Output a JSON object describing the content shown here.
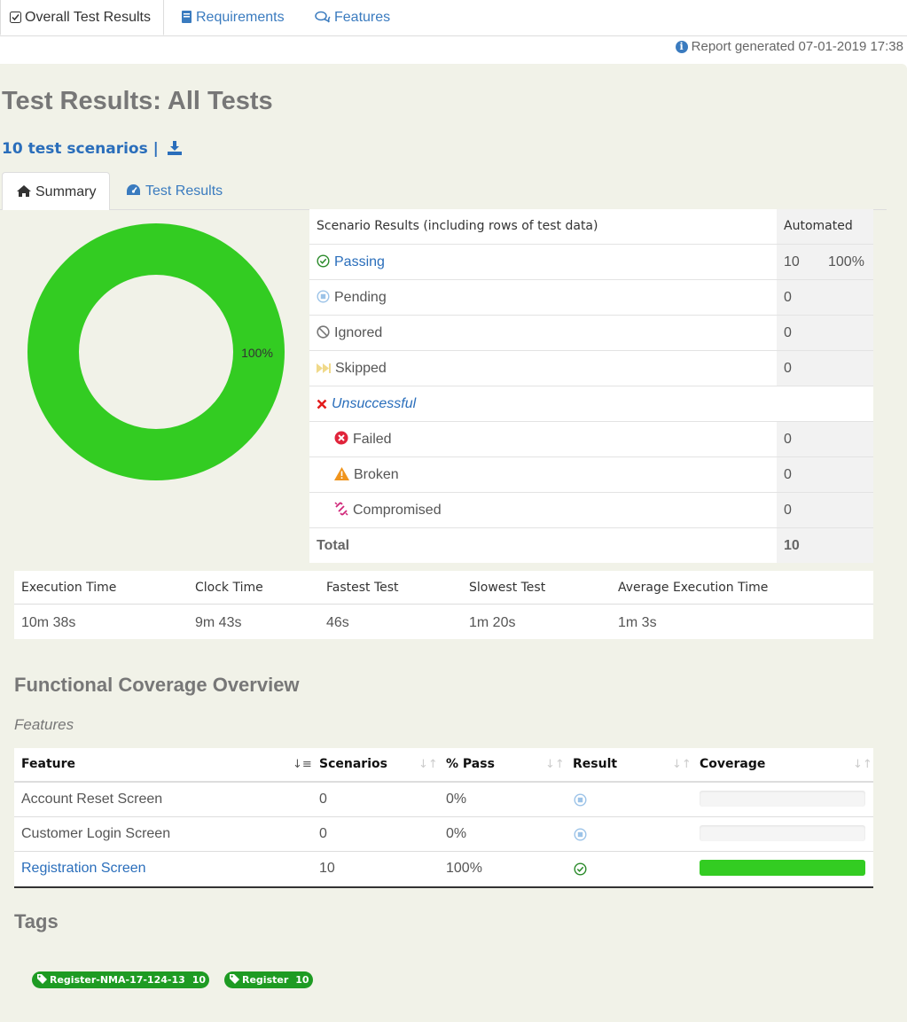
{
  "top_tabs": [
    {
      "label": "Overall Test Results",
      "icon": "checkbox-icon"
    },
    {
      "label": "Requirements",
      "icon": "book-icon"
    },
    {
      "label": "Features",
      "icon": "comments-icon"
    }
  ],
  "report_generated": "Report generated 07-01-2019 17:38",
  "page_title": "Test Results: All Tests",
  "scenarios_link": "10 test scenarios",
  "scenarios_sep": "|",
  "sub_tabs": [
    {
      "label": "Summary",
      "icon": "home-icon"
    },
    {
      "label": "Test Results",
      "icon": "dashboard-icon"
    }
  ],
  "donut": {
    "label": "100%",
    "pass_fraction": 1.0,
    "color": "#33cc22"
  },
  "results": {
    "header": "Scenario Results (including rows of test data)",
    "header_auto": "Automated",
    "rows": [
      {
        "label": "Passing",
        "count": "10",
        "pct": "100%"
      },
      {
        "label": "Pending",
        "count": "0",
        "pct": ""
      },
      {
        "label": "Ignored",
        "count": "0",
        "pct": ""
      },
      {
        "label": "Skipped",
        "count": "0",
        "pct": ""
      },
      {
        "label": "Unsuccessful",
        "count": "",
        "pct": ""
      },
      {
        "label": "Failed",
        "count": "0",
        "pct": ""
      },
      {
        "label": "Broken",
        "count": "0",
        "pct": ""
      },
      {
        "label": "Compromised",
        "count": "0",
        "pct": ""
      }
    ],
    "total_label": "Total",
    "total_count": "10"
  },
  "timing": {
    "headers": [
      "Execution Time",
      "Clock Time",
      "Fastest Test",
      "Slowest Test",
      "Average Execution Time"
    ],
    "values": [
      "10m 38s",
      "9m 43s",
      "46s",
      "1m 20s",
      "1m 3s"
    ]
  },
  "coverage": {
    "title": "Functional Coverage Overview",
    "subtitle": "Features",
    "headers": [
      "Feature",
      "Scenarios",
      "% Pass",
      "Result",
      "Coverage"
    ],
    "rows": [
      {
        "feature": "Account Reset Screen",
        "scenarios": "0",
        "pass": "0%",
        "result": "pending",
        "coverage": 0
      },
      {
        "feature": "Customer Login Screen",
        "scenarios": "0",
        "pass": "0%",
        "result": "pending",
        "coverage": 0
      },
      {
        "feature": "Registration Screen",
        "scenarios": "10",
        "pass": "100%",
        "result": "passing",
        "coverage": 1
      }
    ]
  },
  "tags": {
    "title": "Tags",
    "items": [
      {
        "name": "Register-NMA-17-124-13",
        "count": "10"
      },
      {
        "name": "Register",
        "count": "10"
      }
    ]
  }
}
